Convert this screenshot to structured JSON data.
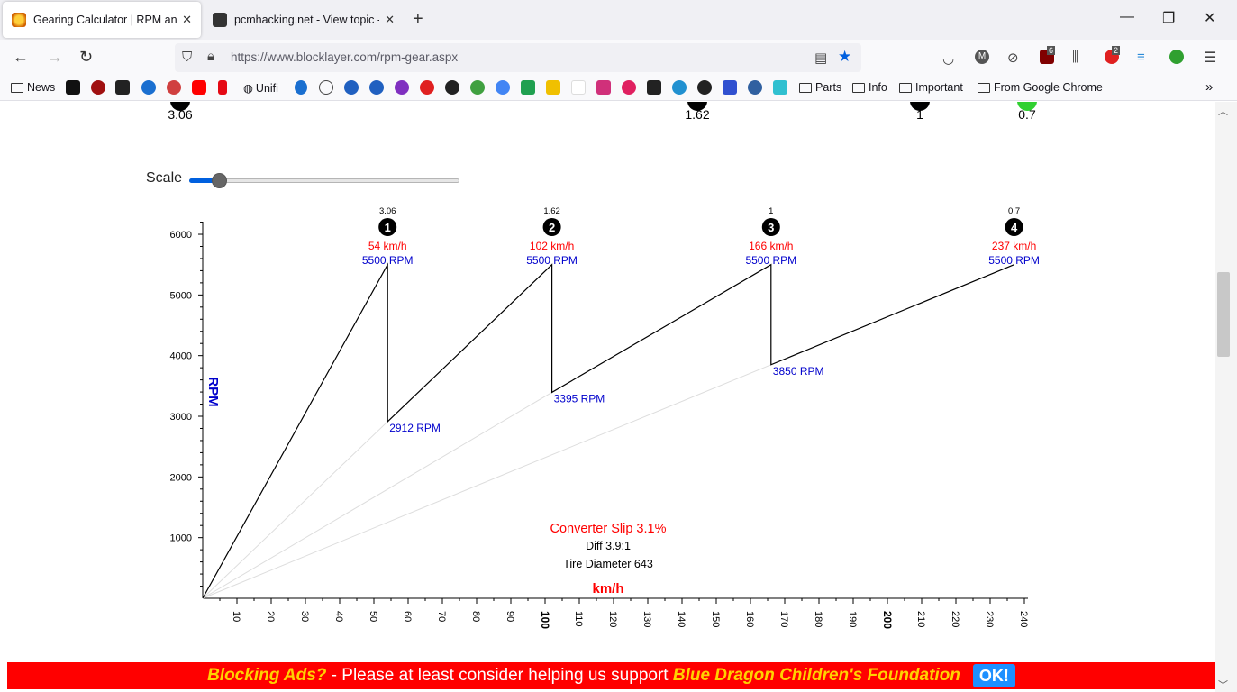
{
  "browser": {
    "tabs": [
      {
        "title": "Gearing Calculator | RPM and Ti",
        "active": true,
        "icon": "sun-icon",
        "color": "#e8a000"
      },
      {
        "title": "pcmhacking.net - View topic - V",
        "active": false,
        "icon": "car-icon",
        "color": "#333333"
      }
    ],
    "url_domain": "https://www.blocklayer.com",
    "url_path": "/rpm-gear.aspx",
    "badges": {
      "ublock": "6",
      "abp": "2"
    },
    "bookmarks": [
      {
        "label": "News",
        "type": "folder"
      },
      {
        "label": "Unifi",
        "type": "site"
      },
      {
        "label": "Parts",
        "type": "folder"
      },
      {
        "label": "Info",
        "type": "folder"
      },
      {
        "label": "Important",
        "type": "folder"
      },
      {
        "label": "From Google Chrome",
        "type": "folder"
      }
    ]
  },
  "page": {
    "top_gear_labels": [
      {
        "ratio": "3.06",
        "x": 200
      },
      {
        "ratio": "1.62",
        "x": 774
      },
      {
        "ratio": "1",
        "x": 1021
      },
      {
        "ratio": "0.7",
        "x": 1140
      }
    ],
    "scale_label": "Scale",
    "scale_value": 0.1,
    "banner": {
      "part1": "Blocking Ads?",
      "part2": " - Please at least consider helping us support ",
      "part3": "Blue Dragon Children's Foundation",
      "ok": "OK!"
    }
  },
  "chart_data": {
    "type": "line",
    "ylabel": "RPM",
    "xlabel": "km/h",
    "xlim": [
      0,
      240
    ],
    "ylim": [
      0,
      6000
    ],
    "x_ticks": [
      10,
      20,
      30,
      40,
      50,
      60,
      70,
      80,
      90,
      100,
      110,
      120,
      130,
      140,
      150,
      160,
      170,
      180,
      190,
      200,
      210,
      220,
      230,
      240
    ],
    "y_ticks": [
      1000,
      2000,
      3000,
      4000,
      5000,
      6000
    ],
    "gears": [
      {
        "number": "1",
        "ratio": "3.06",
        "top_speed": 54,
        "top_speed_label": "54 km/h",
        "max_rpm": 5500,
        "max_rpm_label": "5500 RPM",
        "drop_rpm": null,
        "drop_rpm_label": ""
      },
      {
        "number": "2",
        "ratio": "1.62",
        "top_speed": 102,
        "top_speed_label": "102 km/h",
        "max_rpm": 5500,
        "max_rpm_label": "5500 RPM",
        "drop_rpm": 2912,
        "drop_rpm_label": "2912 RPM"
      },
      {
        "number": "3",
        "ratio": "1",
        "top_speed": 166,
        "top_speed_label": "166 km/h",
        "max_rpm": 5500,
        "max_rpm_label": "5500 RPM",
        "drop_rpm": 3395,
        "drop_rpm_label": "3395 RPM"
      },
      {
        "number": "4",
        "ratio": "0.7",
        "top_speed": 237,
        "top_speed_label": "237 km/h",
        "max_rpm": 5500,
        "max_rpm_label": "5500 RPM",
        "drop_rpm": 3850,
        "drop_rpm_label": "3850 RPM"
      }
    ],
    "info": {
      "converter_slip": "Converter Slip 3.1%",
      "diff": "Diff 3.9:1",
      "tire": "Tire Diameter 643"
    },
    "colors": {
      "speed": "#ff0000",
      "rpm": "#0000cc",
      "line": "#000000",
      "guide": "#dddddd"
    }
  }
}
